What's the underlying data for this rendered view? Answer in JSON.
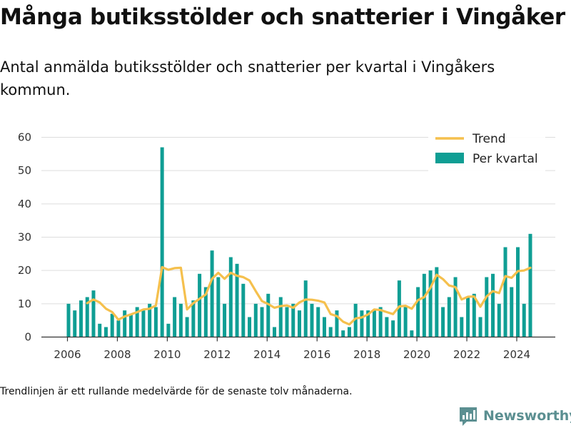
{
  "title": "Många butiksstölder och snatterier i Vingåker",
  "subtitle": "Antal anmälda butiksstölder och snatterier per kvartal i Vingåkers kommun.",
  "footnote": "Trendlinjen är ett rullande medelvärde för de senaste tolv månaderna.",
  "brand": {
    "name": "Newsworthy",
    "icon": "newsworthy-logo-icon",
    "color": "#5b8f91"
  },
  "chart_data": {
    "type": "bar",
    "ylim": [
      0,
      60
    ],
    "y_ticks": [
      "0",
      "10",
      "20",
      "30",
      "40",
      "50",
      "60"
    ],
    "x_ticks": [
      "2006",
      "2008",
      "2010",
      "2012",
      "2014",
      "2016",
      "2018",
      "2020",
      "2022",
      "2024"
    ],
    "grid": true,
    "legend_position": "top-right",
    "colors": {
      "bars": "#0f9e94",
      "trend": "#f5c04d",
      "grid": "#dddddd",
      "axis": "#333333"
    },
    "series": [
      {
        "name": "Per kvartal",
        "type": "bar",
        "x": [
          "2006 Q1",
          "2006 Q2",
          "2006 Q3",
          "2006 Q4",
          "2007 Q1",
          "2007 Q2",
          "2007 Q3",
          "2007 Q4",
          "2008 Q1",
          "2008 Q2",
          "2008 Q3",
          "2008 Q4",
          "2009 Q1",
          "2009 Q2",
          "2009 Q3",
          "2009 Q4",
          "2010 Q1",
          "2010 Q2",
          "2010 Q3",
          "2010 Q4",
          "2011 Q1",
          "2011 Q2",
          "2011 Q3",
          "2011 Q4",
          "2012 Q1",
          "2012 Q2",
          "2012 Q3",
          "2012 Q4",
          "2013 Q1",
          "2013 Q2",
          "2013 Q3",
          "2013 Q4",
          "2014 Q1",
          "2014 Q2",
          "2014 Q3",
          "2014 Q4",
          "2015 Q1",
          "2015 Q2",
          "2015 Q3",
          "2015 Q4",
          "2016 Q1",
          "2016 Q2",
          "2016 Q3",
          "2016 Q4",
          "2017 Q1",
          "2017 Q2",
          "2017 Q3",
          "2017 Q4",
          "2018 Q1",
          "2018 Q2",
          "2018 Q3",
          "2018 Q4",
          "2019 Q1",
          "2019 Q2",
          "2019 Q3",
          "2019 Q4",
          "2020 Q1",
          "2020 Q2",
          "2020 Q3",
          "2020 Q4",
          "2021 Q1",
          "2021 Q2",
          "2021 Q3",
          "2021 Q4",
          "2022 Q1",
          "2022 Q2",
          "2022 Q3",
          "2022 Q4",
          "2023 Q1",
          "2023 Q2",
          "2023 Q3",
          "2023 Q4",
          "2024 Q1",
          "2024 Q2",
          "2024 Q3"
        ],
        "values": [
          10,
          8,
          11,
          12,
          14,
          4,
          3,
          7,
          5,
          8,
          7,
          9,
          8,
          10,
          9,
          57,
          4,
          12,
          10,
          6,
          11,
          19,
          15,
          26,
          18,
          10,
          24,
          22,
          16,
          6,
          10,
          9,
          13,
          3,
          12,
          9,
          10,
          8,
          17,
          10,
          9,
          6,
          3,
          8,
          2,
          3,
          10,
          8,
          8,
          8,
          9,
          6,
          5,
          17,
          9,
          2,
          15,
          19,
          20,
          21,
          9,
          12,
          18,
          6,
          12,
          13,
          6,
          18,
          19,
          10,
          27,
          15,
          27,
          10,
          31
        ]
      },
      {
        "name": "Trend",
        "type": "line",
        "x": [
          "2006 Q4",
          "2007 Q1",
          "2007 Q2",
          "2007 Q3",
          "2007 Q4",
          "2008 Q1",
          "2008 Q2",
          "2008 Q3",
          "2008 Q4",
          "2009 Q1",
          "2009 Q2",
          "2009 Q3",
          "2009 Q4",
          "2010 Q1",
          "2010 Q2",
          "2010 Q3",
          "2010 Q4",
          "2011 Q1",
          "2011 Q2",
          "2011 Q3",
          "2011 Q4",
          "2012 Q1",
          "2012 Q2",
          "2012 Q3",
          "2012 Q4",
          "2013 Q1",
          "2013 Q2",
          "2013 Q3",
          "2013 Q4",
          "2014 Q1",
          "2014 Q2",
          "2014 Q3",
          "2014 Q4",
          "2015 Q1",
          "2015 Q2",
          "2015 Q3",
          "2015 Q4",
          "2016 Q1",
          "2016 Q2",
          "2016 Q3",
          "2016 Q4",
          "2017 Q1",
          "2017 Q2",
          "2017 Q3",
          "2017 Q4",
          "2018 Q1",
          "2018 Q2",
          "2018 Q3",
          "2018 Q4",
          "2019 Q1",
          "2019 Q2",
          "2019 Q3",
          "2019 Q4",
          "2020 Q1",
          "2020 Q2",
          "2020 Q3",
          "2020 Q4",
          "2021 Q1",
          "2021 Q2",
          "2021 Q3",
          "2021 Q4",
          "2022 Q1",
          "2022 Q2",
          "2022 Q3",
          "2022 Q4",
          "2023 Q1",
          "2023 Q2",
          "2023 Q3",
          "2023 Q4",
          "2024 Q1",
          "2024 Q2",
          "2024 Q3"
        ],
        "values": [
          10.2,
          11.3,
          10.4,
          8.5,
          7.5,
          5.2,
          6.2,
          6.8,
          7.5,
          8.3,
          8.5,
          9.5,
          21.0,
          20.2,
          20.7,
          20.8,
          8.3,
          10.2,
          11.5,
          12.8,
          17.5,
          19.3,
          17.5,
          19.3,
          18.4,
          18.0,
          17.0,
          13.8,
          10.8,
          9.9,
          8.8,
          9.3,
          9.5,
          8.8,
          10.4,
          11.3,
          11.2,
          10.9,
          10.4,
          6.9,
          6.3,
          4.6,
          3.8,
          5.6,
          5.9,
          6.8,
          8.3,
          8.1,
          7.5,
          6.9,
          9.2,
          9.4,
          8.5,
          11.1,
          12.0,
          14.8,
          18.7,
          17.4,
          15.5,
          15.0,
          11.3,
          12.1,
          12.2,
          9.1,
          12.2,
          13.8,
          13.2,
          18.3,
          17.8,
          19.8,
          20.0,
          20.8
        ]
      }
    ]
  }
}
